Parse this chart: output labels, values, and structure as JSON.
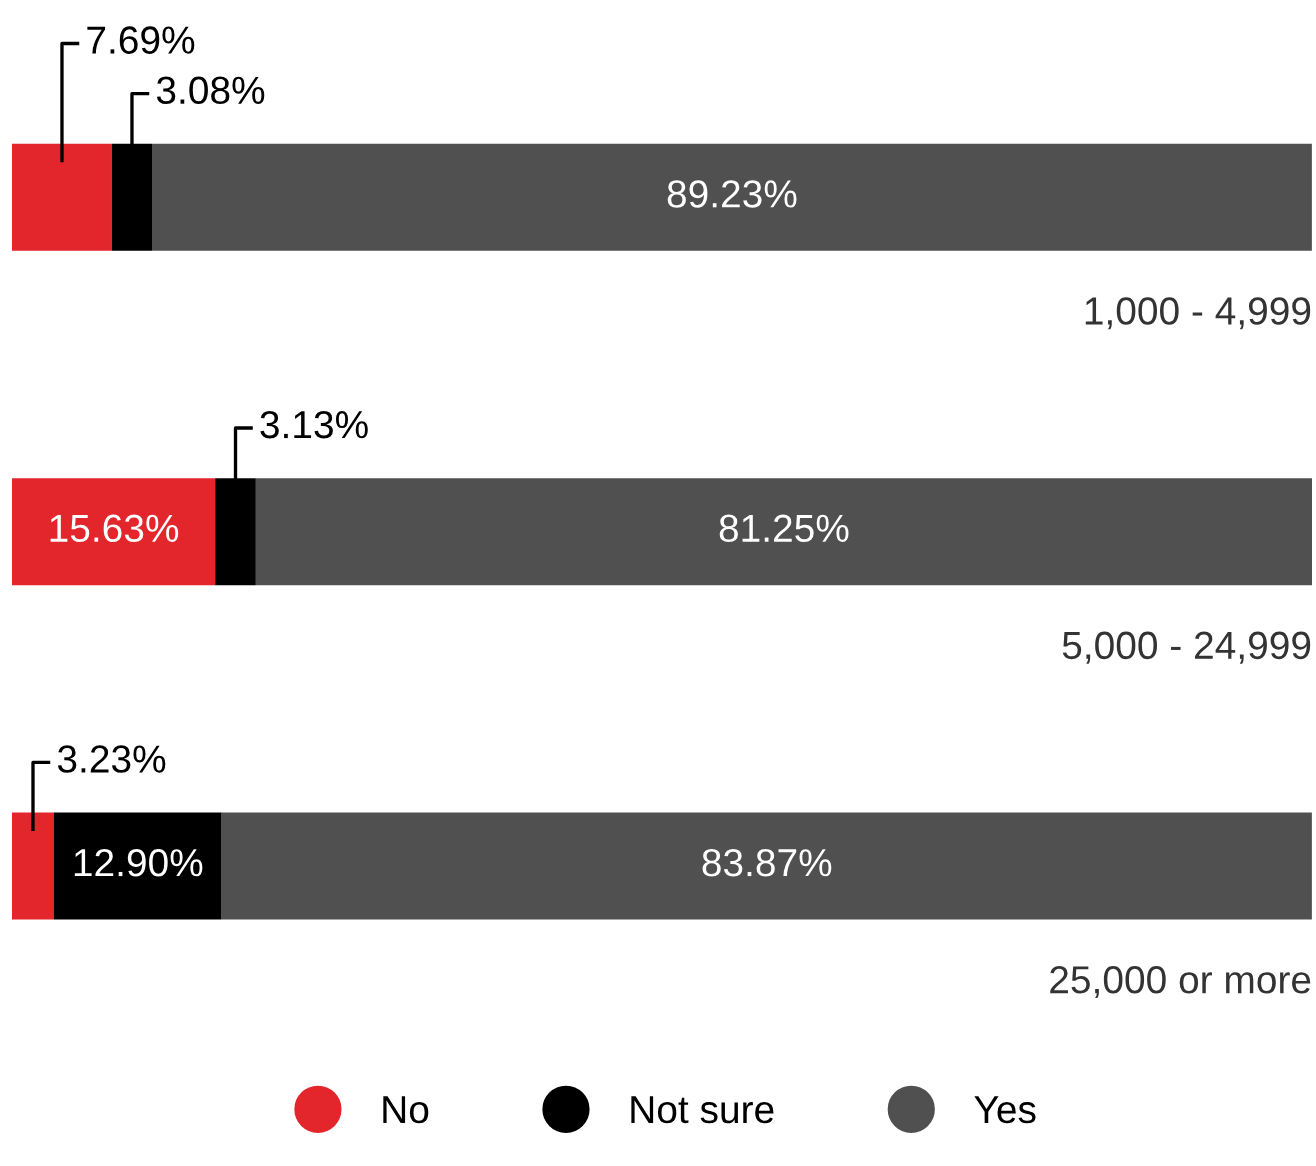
{
  "chart_data": {
    "type": "bar",
    "orientation": "horizontal",
    "stacked": true,
    "categories": [
      "1,000 - 4,999",
      "5,000 - 24,999",
      "25,000 or more"
    ],
    "series": [
      {
        "name": "No",
        "color": "#e3262b",
        "values": [
          7.69,
          15.63,
          3.23
        ],
        "value_labels": [
          "7.69%",
          "15.63%",
          "3.23%"
        ]
      },
      {
        "name": "Not sure",
        "color": "#000000",
        "values": [
          3.08,
          3.13,
          12.9
        ],
        "value_labels": [
          "3.08%",
          "3.13%",
          "12.90%"
        ]
      },
      {
        "name": "Yes",
        "color": "#505050",
        "values": [
          89.23,
          81.25,
          83.87
        ],
        "value_labels": [
          "89.23%",
          "81.25%",
          "83.87%"
        ]
      }
    ],
    "legend": "bottom"
  }
}
